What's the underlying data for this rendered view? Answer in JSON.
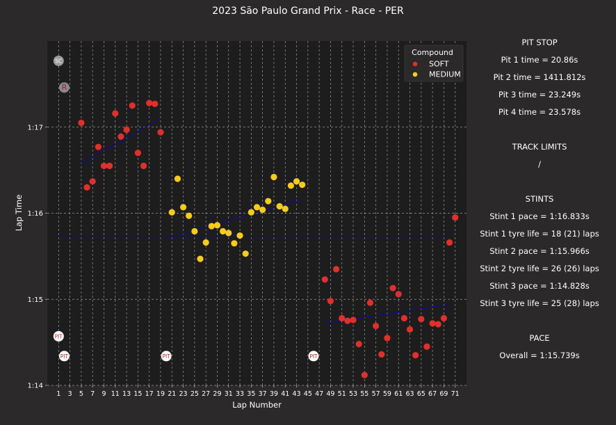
{
  "chart_data": {
    "type": "scatter",
    "title": "2023 São Paulo Grand Prix - Race - PER",
    "xlabel": "Lap Number",
    "ylabel": "Lap Time",
    "xlim": [
      -1,
      73
    ],
    "ylim": [
      74.0,
      78.0
    ],
    "xticks": [
      1,
      3,
      5,
      7,
      9,
      11,
      13,
      15,
      17,
      19,
      21,
      23,
      25,
      27,
      29,
      31,
      33,
      35,
      37,
      39,
      41,
      43,
      45,
      47,
      49,
      51,
      53,
      55,
      57,
      59,
      61,
      63,
      65,
      67,
      69,
      71
    ],
    "yticks": [
      74.0,
      75.0,
      76.0,
      77.0
    ],
    "ytick_labels": [
      "1:14",
      "1:15",
      "1:16",
      "1:17"
    ],
    "grid": true,
    "legend": {
      "title": "Compound",
      "position": "top-right"
    },
    "series": [
      {
        "name": "SOFT",
        "color": "#e0302c",
        "points": [
          [
            5,
            77.05
          ],
          [
            6,
            76.3
          ],
          [
            7,
            76.37
          ],
          [
            8,
            76.77
          ],
          [
            9,
            76.55
          ],
          [
            10,
            76.55
          ],
          [
            11,
            77.16
          ],
          [
            12,
            76.89
          ],
          [
            13,
            76.97
          ],
          [
            14,
            77.25
          ],
          [
            15,
            76.7
          ],
          [
            16,
            76.55
          ],
          [
            17,
            77.28
          ],
          [
            18,
            77.27
          ],
          [
            19,
            76.94
          ],
          [
            48,
            75.23
          ],
          [
            49,
            74.98
          ],
          [
            50,
            75.35
          ],
          [
            51,
            74.78
          ],
          [
            52,
            74.75
          ],
          [
            53,
            74.76
          ],
          [
            54,
            74.48
          ],
          [
            55,
            74.12
          ],
          [
            56,
            74.96
          ],
          [
            57,
            74.69
          ],
          [
            58,
            74.36
          ],
          [
            59,
            74.55
          ],
          [
            60,
            75.13
          ],
          [
            61,
            75.06
          ],
          [
            62,
            74.78
          ],
          [
            63,
            74.65
          ],
          [
            64,
            74.35
          ],
          [
            65,
            74.77
          ],
          [
            66,
            74.45
          ],
          [
            67,
            74.72
          ],
          [
            68,
            74.71
          ],
          [
            69,
            74.78
          ],
          [
            70,
            75.66
          ],
          [
            71,
            75.95
          ]
        ]
      },
      {
        "name": "MEDIUM",
        "color": "#f5cc1c",
        "points": [
          [
            21,
            76.01
          ],
          [
            22,
            76.4
          ],
          [
            23,
            76.07
          ],
          [
            24,
            75.97
          ],
          [
            25,
            75.79
          ],
          [
            26,
            75.47
          ],
          [
            27,
            75.66
          ],
          [
            28,
            75.85
          ],
          [
            29,
            75.86
          ],
          [
            30,
            75.79
          ],
          [
            31,
            75.77
          ],
          [
            32,
            75.65
          ],
          [
            33,
            75.74
          ],
          [
            34,
            75.53
          ],
          [
            35,
            76.01
          ],
          [
            36,
            76.07
          ],
          [
            37,
            76.04
          ],
          [
            38,
            76.14
          ],
          [
            39,
            76.42
          ],
          [
            40,
            76.08
          ],
          [
            41,
            76.05
          ],
          [
            42,
            76.32
          ],
          [
            43,
            76.37
          ],
          [
            44,
            76.33
          ]
        ]
      }
    ],
    "trendlines": [
      {
        "x": [
          5,
          19
        ],
        "y": [
          76.58,
          77.1
        ]
      },
      {
        "x": [
          21,
          44
        ],
        "y": [
          75.72,
          76.16
        ]
      },
      {
        "x": [
          48,
          70
        ],
        "y": [
          74.72,
          74.94
        ]
      },
      {
        "x": [
          1,
          71
        ],
        "y": [
          75.74,
          75.74
        ]
      }
    ],
    "annotations": [
      {
        "text": "SC",
        "x": 1,
        "y": 77.77
      },
      {
        "text": "R",
        "x": 2,
        "y": 77.46
      },
      {
        "text": "PIT",
        "x": 1,
        "y": 74.57
      },
      {
        "text": "PIT",
        "x": 2,
        "y": 74.34
      },
      {
        "text": "PIT",
        "x": 20,
        "y": 74.34
      },
      {
        "text": "PIT",
        "x": 46,
        "y": 74.34
      }
    ]
  },
  "panel": {
    "pit_title": "PIT STOP",
    "pit1": "Pit 1 time = 20.86s",
    "pit2": "Pit 2 time = 1411.812s",
    "pit3": "Pit 3 time = 23.249s",
    "pit4": "Pit 4 time = 23.578s",
    "tl_title": "TRACK LIMITS",
    "tl_value": "/",
    "stints_title": "STINTS",
    "s1_pace": "Stint 1 pace = 1:16.833s",
    "s1_life": "Stint 1 tyre life = 18 (21) laps",
    "s2_pace": "Stint 2 pace = 1:15.966s",
    "s2_life": "Stint 2 tyre life = 26 (26) laps",
    "s3_pace": "Stint 3 pace = 1:14.828s",
    "s3_life": "Stint 3 tyre life = 25 (28) laps",
    "pace_title": "PACE",
    "overall": "Overall = 1:15.739s"
  },
  "colors": {
    "background": "#2b2929",
    "plot_bg": "#1e1d1d",
    "trend": "#0a0aa8",
    "soft": "#e0302c",
    "medium": "#f5cc1c"
  }
}
